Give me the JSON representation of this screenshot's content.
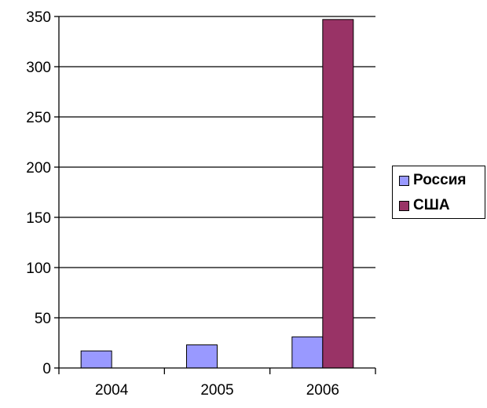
{
  "chart_data": {
    "type": "bar",
    "categories": [
      "2004",
      "2005",
      "2006"
    ],
    "series": [
      {
        "name": "Россия",
        "values": [
          17,
          23,
          31
        ],
        "color": "#9999ff"
      },
      {
        "name": "США",
        "values": [
          null,
          null,
          347
        ],
        "color": "#993366"
      }
    ],
    "ylim": [
      0,
      350
    ],
    "yticks": [
      0,
      50,
      100,
      150,
      200,
      250,
      300,
      350
    ],
    "ytick_labels": [
      "0",
      "50",
      "100",
      "150",
      "200",
      "250",
      "300",
      "350"
    ],
    "grid": true,
    "legend_position": "right",
    "title": "",
    "xlabel": "",
    "ylabel": ""
  },
  "legend": {
    "items": [
      {
        "label": "Россия",
        "color": "#9999ff"
      },
      {
        "label": "США",
        "color": "#993366"
      }
    ]
  }
}
